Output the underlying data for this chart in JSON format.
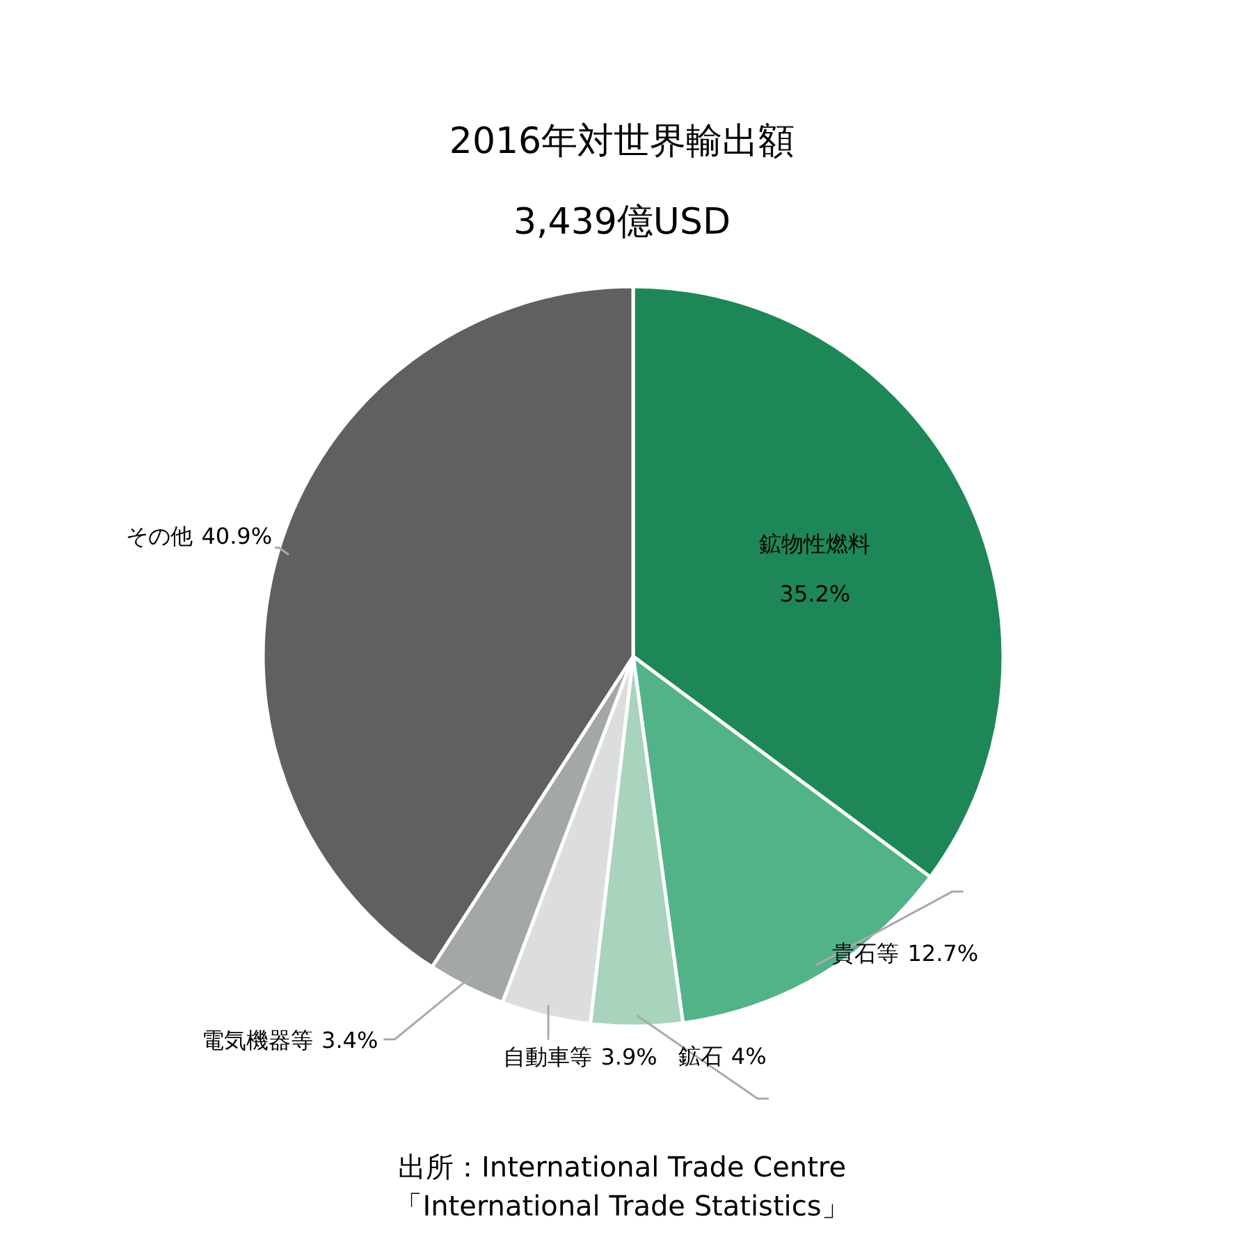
{
  "chart_data": {
    "type": "pie",
    "title": "2016年対世界輸出額",
    "subtitle": "3,439億USD",
    "categories": [
      "鉱物性燃料",
      "貴石等",
      "鉱石",
      "自動車等",
      "電気機器等",
      "その他"
    ],
    "values": [
      35.2,
      12.7,
      4,
      3.9,
      3.4,
      40.9
    ],
    "colors": [
      "#1e8757",
      "#52b389",
      "#a8d3bd",
      "#dcdedd",
      "#a3a8a5",
      "#606060"
    ],
    "value_labels": [
      "35.2%",
      "12.7%",
      "4%",
      "3.9%",
      "3.4%",
      "40.9%"
    ],
    "annotations": [
      "出所：International Trade Centre",
      "「International Trade Statistics」"
    ]
  }
}
